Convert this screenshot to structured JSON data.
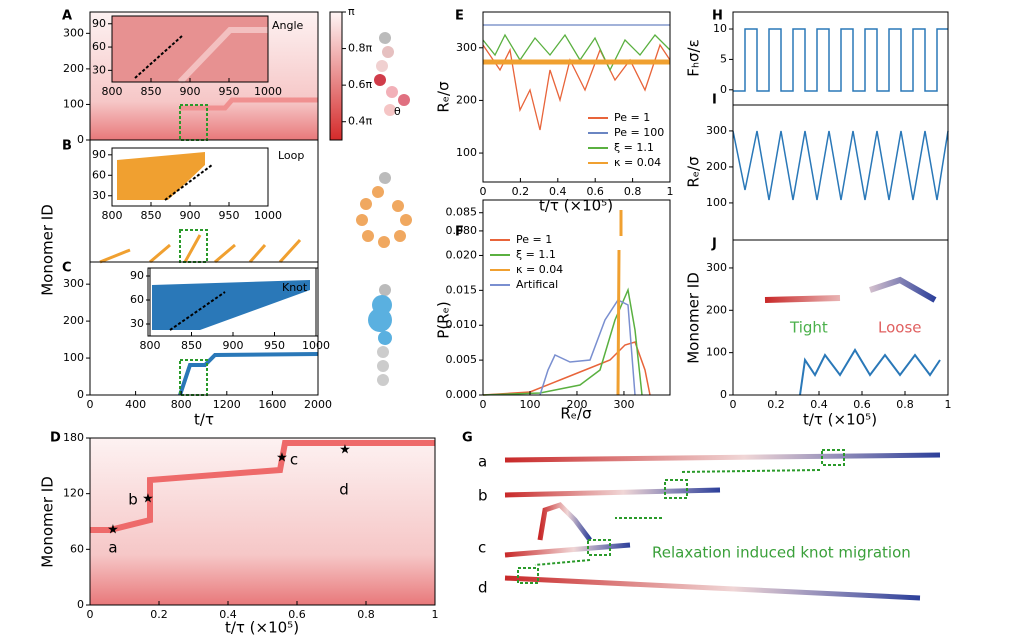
{
  "figure": {
    "A": {
      "label": "A",
      "annotation": "Angle",
      "ylim": [
        0,
        360
      ],
      "yticks": [
        0,
        100,
        200,
        300
      ],
      "inset": {
        "xlim": [
          800,
          1000
        ],
        "xticks": [
          800,
          850,
          900,
          950,
          1000
        ],
        "ylim": [
          15,
          100
        ],
        "yticks": [
          30,
          60,
          90
        ]
      }
    },
    "colorbar": {
      "lim": [
        0.3,
        1
      ],
      "ticks": [
        {
          "value": 1,
          "label": "π"
        },
        {
          "value": 0.8,
          "label": "0.8π"
        },
        {
          "value": 0.6,
          "label": "0.6π"
        },
        {
          "value": 0.4,
          "label": "0.4π"
        }
      ],
      "angle_label": "θ"
    },
    "B": {
      "label": "B",
      "annotation": "Loop",
      "inset": {
        "xlim": [
          800,
          1000
        ],
        "xticks": [
          800,
          850,
          900,
          950,
          1000
        ],
        "ylim": [
          15,
          100
        ],
        "yticks": [
          30,
          60,
          90
        ]
      }
    },
    "C": {
      "label": "C",
      "annotation": "Knot",
      "ylim": [
        0,
        360
      ],
      "yticks": [
        0,
        100,
        200,
        300
      ],
      "xlim": [
        0,
        2000
      ],
      "xticks": [
        0,
        400,
        800,
        1200,
        1600,
        2000
      ],
      "inset": {
        "xlim": [
          800,
          1000
        ],
        "xticks": [
          800,
          850,
          900,
          950,
          1000
        ],
        "ylim": [
          15,
          100
        ],
        "yticks": [
          30,
          60,
          90
        ]
      }
    },
    "left_ylabel": "Monomer ID",
    "left_xlabel": "t/τ",
    "D": {
      "label": "D",
      "ylabel": "Monomer ID",
      "xlabel": "t/τ  (×10⁵)",
      "xlim": [
        0,
        1
      ],
      "xticks": [
        0,
        0.2,
        0.4,
        0.6,
        0.8,
        1
      ],
      "ylim": [
        0,
        180
      ],
      "yticks": [
        0,
        60,
        120,
        180
      ],
      "markers": [
        "a",
        "b",
        "c",
        "d"
      ]
    },
    "E": {
      "label": "E",
      "ylabel": "Rₑ/σ",
      "xlabel": "t/τ  (×10⁵)",
      "xlim": [
        0,
        1
      ],
      "xticks": [
        0,
        0.2,
        0.4,
        0.6,
        0.8,
        1
      ],
      "ylim": [
        45,
        368
      ],
      "yticks": [
        100,
        200,
        300
      ],
      "legend": [
        {
          "name": "Pe = 1",
          "color": "#e8643a"
        },
        {
          "name": "Pe = 100",
          "color": "#6a85c2"
        },
        {
          "name": "ξ = 1.1",
          "color": "#5ab040"
        },
        {
          "name": "κ = 0.04",
          "color": "#f0a030"
        }
      ]
    },
    "F": {
      "label": "F",
      "ylabel": "P(Rₑ)",
      "xlabel": "Rₑ/σ",
      "xlim": [
        0,
        398
      ],
      "xticks": [
        0,
        100,
        200,
        300
      ],
      "ylim": [
        0,
        0.0215
      ],
      "yticks": [
        {
          "value": 0,
          "label": "0.000"
        },
        {
          "value": 0.005,
          "label": "0.005"
        },
        {
          "value": 0.01,
          "label": "0.010"
        },
        {
          "value": 0.015,
          "label": "0.015"
        },
        {
          "value": 0.02,
          "label": "0.020"
        }
      ],
      "ylim_top": [
        0.0775,
        0.0885
      ],
      "yticks_top": [
        {
          "value": 0.08,
          "label": "0.080"
        },
        0.085
      ],
      "legend": [
        {
          "name": "Pe = 1",
          "color": "#e8643a"
        },
        {
          "name": "ξ = 1.1",
          "color": "#5ab040"
        },
        {
          "name": "κ = 0.04",
          "color": "#f0a030"
        },
        {
          "name": "Artifical",
          "color": "#7a8fd0"
        }
      ]
    },
    "H": {
      "label": "H",
      "ylabel": "Fₕσ/ε",
      "xlim": [
        0,
        1
      ],
      "ylim": [
        -2.5,
        12.8
      ],
      "yticks": [
        0,
        5,
        10
      ]
    },
    "I": {
      "label": "I",
      "ylabel": "Rₑ/σ",
      "xlim": [
        0,
        1
      ],
      "ylim": [
        -3,
        372
      ],
      "yticks": [
        100,
        200,
        300
      ]
    },
    "J": {
      "label": "J",
      "ylabel": "Monomer ID",
      "xlabel": "t/τ  (×10⁵)",
      "xlim": [
        0,
        1
      ],
      "xticks": [
        0,
        0.2,
        0.4,
        0.6,
        0.8,
        1
      ],
      "ylim": [
        0,
        366
      ],
      "yticks": [
        0,
        100,
        200,
        300
      ],
      "tight": "Tight",
      "loose": "Loose"
    },
    "G": {
      "label": "G",
      "rows": [
        "a",
        "b",
        "c",
        "d"
      ],
      "caption": "Relaxation induced knot migration"
    }
  }
}
